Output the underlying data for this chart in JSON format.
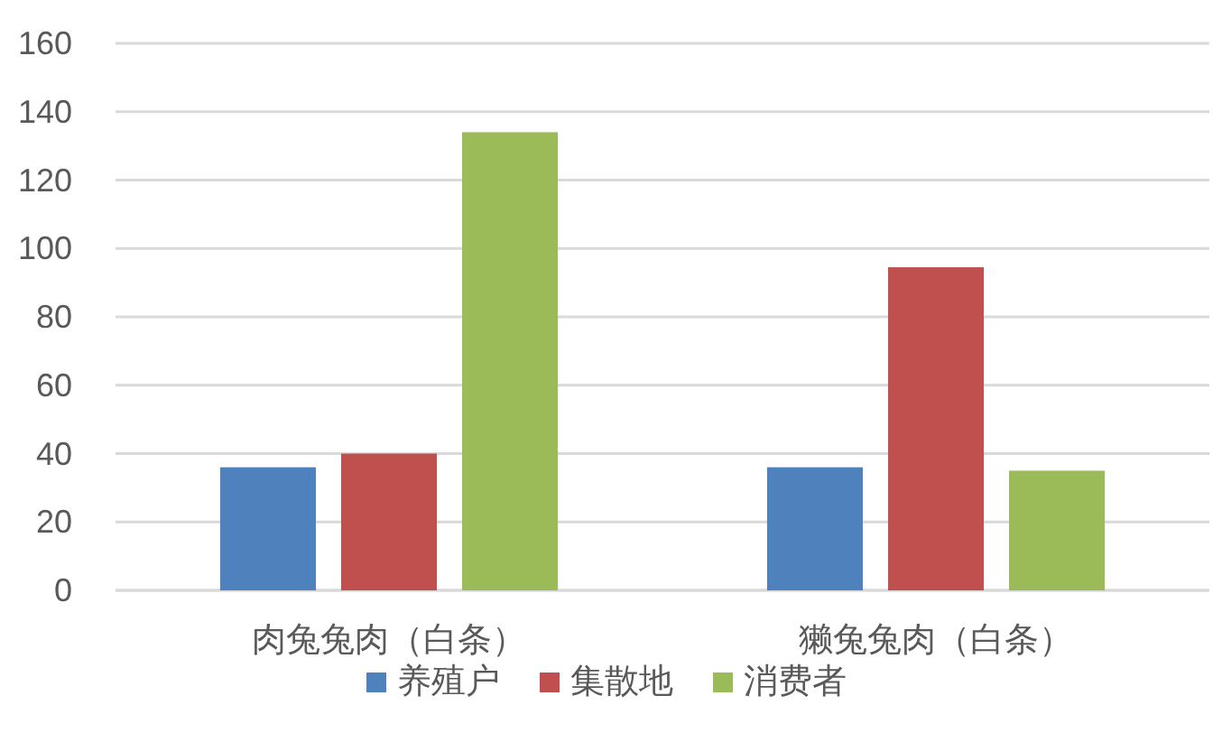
{
  "chart_data": {
    "type": "bar",
    "categories": [
      "肉兔兔肉（白条）",
      "獭兔兔肉（白条）"
    ],
    "series": [
      {
        "name": "养殖户",
        "color": "#4f81bd",
        "values": [
          36,
          36
        ]
      },
      {
        "name": "集散地",
        "color": "#c0504d",
        "values": [
          40,
          94.5
        ]
      },
      {
        "name": "消费者",
        "color": "#9bbb59",
        "values": [
          134,
          35
        ]
      }
    ],
    "ylim": [
      0,
      160
    ],
    "yticks": [
      0,
      20,
      40,
      60,
      80,
      100,
      120,
      140,
      160
    ],
    "grid": "y",
    "legend": "bottom"
  }
}
